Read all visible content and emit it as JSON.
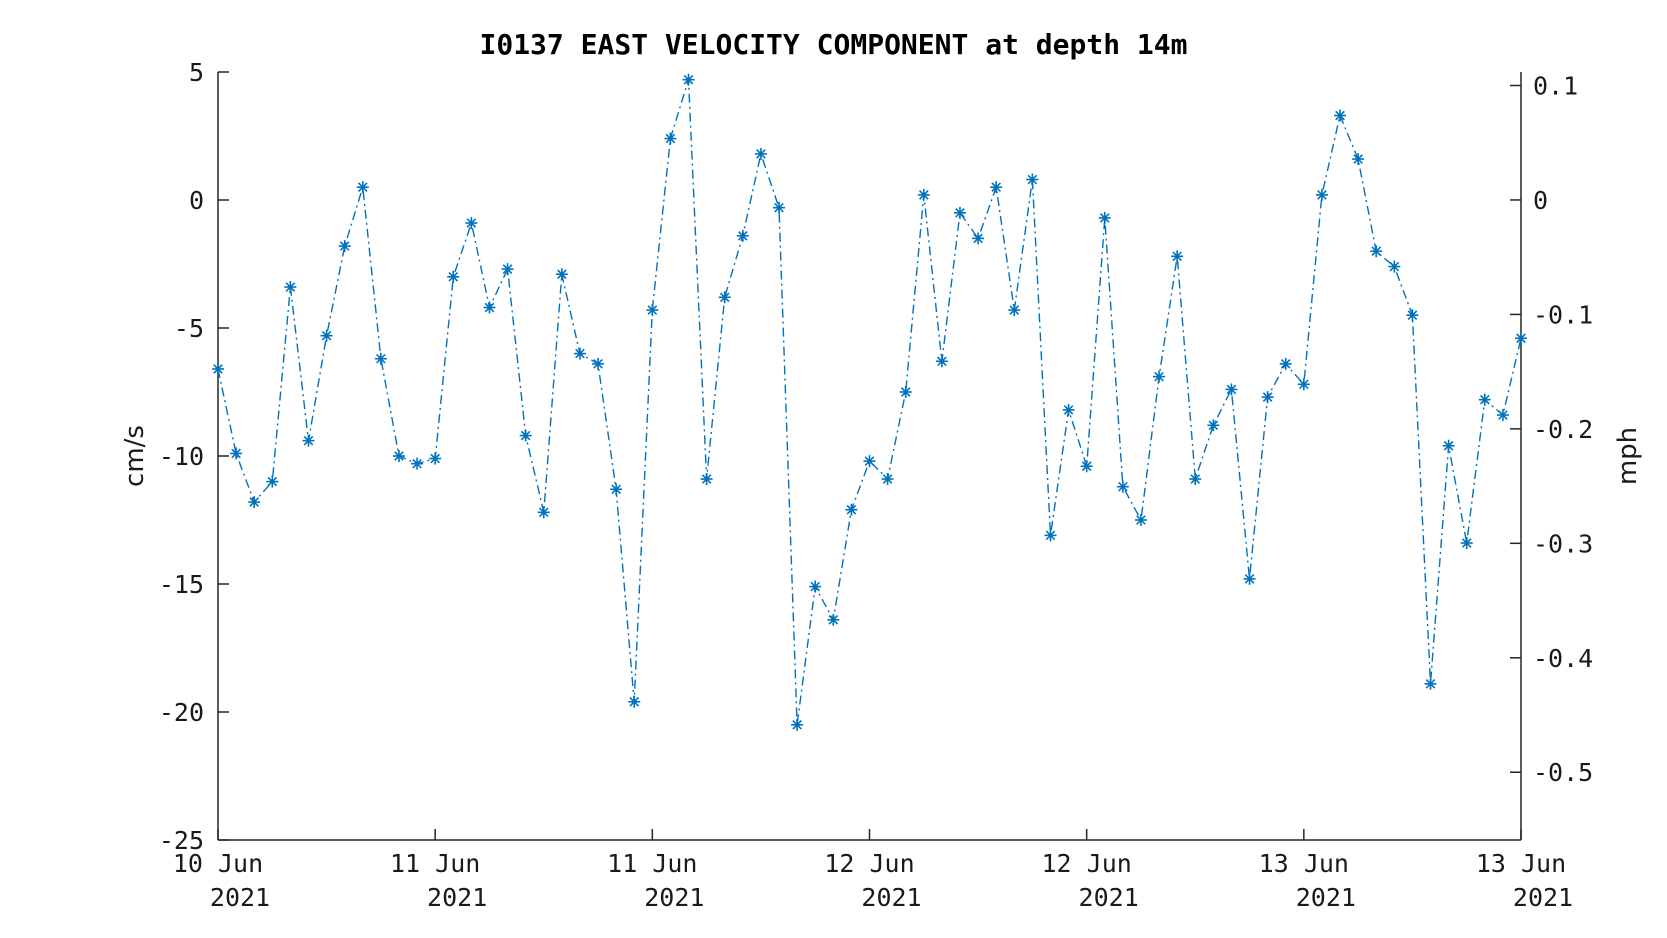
{
  "chart_data": {
    "type": "line",
    "title": "I0137 EAST VELOCITY COMPONENT at depth 14m",
    "ylabel": "cm/s",
    "ylabel_right": "mph",
    "ylim": [
      -25,
      5
    ],
    "yticks": [
      5,
      0,
      -5,
      -10,
      -15,
      -20,
      -25
    ],
    "ylim_right": [
      -0.5592,
      0.1118
    ],
    "yticks_right": [
      0.1,
      0,
      -0.1,
      -0.2,
      -0.3,
      -0.4,
      -0.5
    ],
    "xlim": [
      0,
      72
    ],
    "xticks": [
      {
        "x": 0,
        "line1": "10 Jun",
        "line2": "2021"
      },
      {
        "x": 12,
        "line1": "11 Jun",
        "line2": "2021"
      },
      {
        "x": 24,
        "line1": "11 Jun",
        "line2": "2021"
      },
      {
        "x": 36,
        "line1": "12 Jun",
        "line2": "2021"
      },
      {
        "x": 48,
        "line1": "12 Jun",
        "line2": "2021"
      },
      {
        "x": 60,
        "line1": "13 Jun",
        "line2": "2021"
      },
      {
        "x": 72,
        "line1": "13 Jun",
        "line2": "2021"
      }
    ],
    "grid": false,
    "series": [
      {
        "color": "#0072BD",
        "marker": "asterisk",
        "linestyle": "dash-dot",
        "x": [
          0,
          1,
          2,
          3,
          4,
          5,
          6,
          7,
          8,
          9,
          10,
          11,
          12,
          13,
          14,
          15,
          16,
          17,
          18,
          19,
          20,
          21,
          22,
          23,
          24,
          25,
          26,
          27,
          28,
          29,
          30,
          31,
          32,
          33,
          34,
          35,
          36,
          37,
          38,
          39,
          40,
          41,
          42,
          43,
          44,
          45,
          46,
          47,
          48,
          49,
          50,
          51,
          52,
          53,
          54,
          55,
          56,
          57,
          58,
          59,
          60,
          61,
          62,
          63,
          64,
          65,
          66,
          67,
          68,
          69,
          70,
          71,
          72
        ],
        "y": [
          -6.6,
          -9.9,
          -11.8,
          -11.0,
          -3.4,
          -9.4,
          -5.3,
          -1.8,
          0.5,
          -6.2,
          -10.0,
          -10.3,
          -10.1,
          -3.0,
          -0.9,
          -4.2,
          -2.7,
          -9.2,
          -12.2,
          -2.9,
          -6.0,
          -6.4,
          -11.3,
          -19.6,
          -4.3,
          2.4,
          4.7,
          -10.9,
          -3.8,
          -1.4,
          1.8,
          -0.3,
          -20.5,
          -15.1,
          -16.4,
          -12.1,
          -10.2,
          -10.9,
          -7.5,
          0.2,
          -6.3,
          -0.5,
          -1.5,
          0.5,
          -4.3,
          0.8,
          -13.1,
          -8.2,
          -10.4,
          -0.7,
          -11.2,
          -12.5,
          -6.9,
          -2.2,
          -10.9,
          -8.8,
          -7.4,
          -14.8,
          -7.7,
          -6.4,
          -7.2,
          0.2,
          3.3,
          1.6,
          -2.0,
          -2.6,
          -4.5,
          -18.9,
          -9.6,
          -13.4,
          -7.8,
          -8.4,
          -5.4
        ]
      }
    ]
  }
}
